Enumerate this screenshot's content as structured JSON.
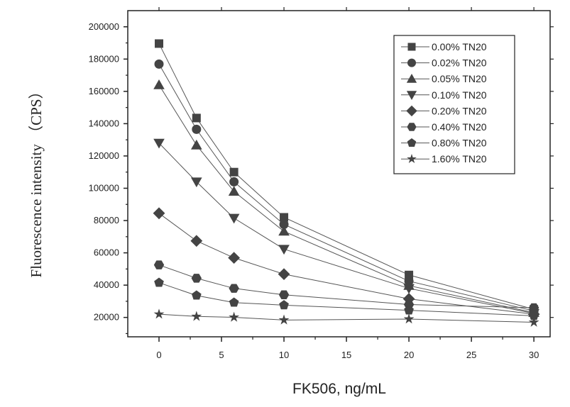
{
  "chart_data": {
    "type": "line",
    "title": "",
    "xlabel": "FK506, ng/mL",
    "ylabel": "Fluorescence intensity （CPS）",
    "xlim": [
      -2.5,
      31.3
    ],
    "ylim": [
      8000,
      210000
    ],
    "xticks": [
      0,
      5,
      10,
      15,
      20,
      25,
      30
    ],
    "yticks": [
      20000,
      40000,
      60000,
      80000,
      100000,
      120000,
      140000,
      160000,
      180000,
      200000
    ],
    "ytick_labels": [
      "20000",
      "40000",
      "60000",
      "80000",
      "100000",
      "120000",
      "140000",
      "160000",
      "180000",
      "200000"
    ],
    "xtick_labels": [
      "0",
      "5",
      "10",
      "15",
      "20",
      "25",
      "30"
    ],
    "grid": false,
    "legend_position": "top-right",
    "x": [
      0,
      3,
      6,
      10,
      20,
      30
    ],
    "series": [
      {
        "name": "0.00% TN20",
        "marker": "square",
        "values": [
          189600,
          143500,
          110000,
          82000,
          46300,
          25000
        ]
      },
      {
        "name": "0.02% TN20",
        "marker": "circle",
        "values": [
          176900,
          136500,
          104000,
          77600,
          42500,
          24000
        ]
      },
      {
        "name": "0.05% TN20",
        "marker": "triangle-up",
        "values": [
          164000,
          126700,
          98000,
          73300,
          39700,
          23000
        ]
      },
      {
        "name": "0.10% TN20",
        "marker": "triangle-down",
        "values": [
          128000,
          104000,
          81500,
          62300,
          38000,
          22500
        ]
      },
      {
        "name": "0.20% TN20",
        "marker": "diamond",
        "values": [
          84500,
          67400,
          56900,
          46800,
          31500,
          22000
        ]
      },
      {
        "name": "0.40% TN20",
        "marker": "hexagon",
        "values": [
          52500,
          44300,
          38000,
          34000,
          28000,
          26000
        ]
      },
      {
        "name": "0.80% TN20",
        "marker": "pentagon",
        "values": [
          41500,
          33600,
          29200,
          27600,
          24400,
          21000
        ]
      },
      {
        "name": "1.60% TN20",
        "marker": "star",
        "values": [
          22000,
          20600,
          20100,
          18400,
          19000,
          17000
        ]
      }
    ]
  },
  "colors": {
    "marker": "#444444",
    "line": "#555555",
    "axis": "#222222"
  }
}
